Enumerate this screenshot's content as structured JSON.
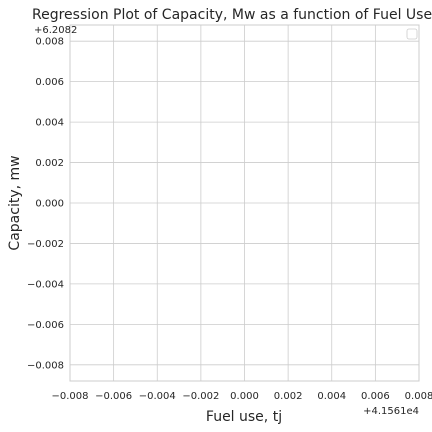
{
  "chart_data": {
    "type": "scatter",
    "title": "Regression Plot of Capacity, Mw as a function of Fuel Use, Tj (La",
    "xlabel": "Fuel use, tj",
    "ylabel": "Capacity, mw",
    "x_offset_text": "+4.1561e4",
    "y_offset_text": "+6.2082",
    "xlim": [
      -0.008,
      0.008
    ],
    "ylim": [
      -0.0088,
      0.0088
    ],
    "x_ticks": [
      -0.008,
      -0.006,
      -0.004,
      -0.002,
      0.0,
      0.002,
      0.004,
      0.006,
      0.008
    ],
    "x_tick_labels": [
      "−0.008",
      "−0.006",
      "−0.004",
      "−0.002",
      "0.000",
      "0.002",
      "0.004",
      "0.006",
      "0.008"
    ],
    "y_ticks": [
      0.008,
      0.006,
      0.004,
      0.002,
      0.0,
      -0.002,
      -0.004,
      -0.006,
      -0.008
    ],
    "y_tick_labels": [
      "0.008",
      "0.006",
      "0.004",
      "0.002",
      "0.000",
      "−0.002",
      "−0.004",
      "−0.006",
      "−0.008"
    ],
    "series": [],
    "grid": true,
    "legend_placement": "top-right",
    "colors": {
      "grid": "#cccccc",
      "frame": "#cccccc",
      "text": "#262626",
      "background": "#ffffff"
    }
  }
}
